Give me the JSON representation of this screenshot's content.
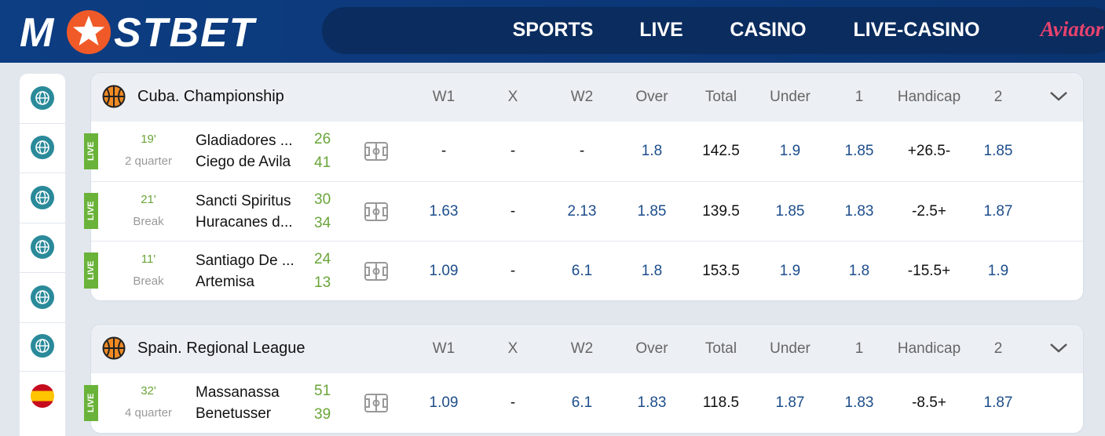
{
  "header": {
    "logo_left": "M",
    "logo_right": "STBET",
    "nav": [
      "SPORTS",
      "LIVE",
      "CASINO",
      "LIVE-CASINO"
    ],
    "aviator": "Aviator"
  },
  "live_badge": "LIVE",
  "leagues": [
    {
      "name": "Cuba. Championship",
      "columns": [
        "W1",
        "X",
        "W2",
        "Over",
        "Total",
        "Under",
        "1",
        "Handicap",
        "2"
      ],
      "matches": [
        {
          "minute": "19'",
          "status": "2 quarter",
          "team1": "Gladiadores ...",
          "team2": "Ciego de Avila",
          "score1": "26",
          "score2": "41",
          "odds": [
            "-",
            "-",
            "-",
            "1.8",
            "142.5",
            "1.9",
            "1.85",
            "+26.5-",
            "1.85"
          ]
        },
        {
          "minute": "21'",
          "status": "Break",
          "team1": "Sancti Spiritus",
          "team2": "Huracanes d...",
          "score1": "30",
          "score2": "34",
          "odds": [
            "1.63",
            "-",
            "2.13",
            "1.85",
            "139.5",
            "1.85",
            "1.83",
            "-2.5+",
            "1.87"
          ]
        },
        {
          "minute": "11'",
          "status": "Break",
          "team1": "Santiago De ...",
          "team2": "Artemisa",
          "score1": "24",
          "score2": "13",
          "odds": [
            "1.09",
            "-",
            "6.1",
            "1.8",
            "153.5",
            "1.9",
            "1.8",
            "-15.5+",
            "1.9"
          ]
        }
      ]
    },
    {
      "name": "Spain. Regional League",
      "columns": [
        "W1",
        "X",
        "W2",
        "Over",
        "Total",
        "Under",
        "1",
        "Handicap",
        "2"
      ],
      "matches": [
        {
          "minute": "32'",
          "status": "4 quarter",
          "team1": "Massanassa",
          "team2": "Benetusser",
          "score1": "51",
          "score2": "39",
          "odds": [
            "1.09",
            "-",
            "6.1",
            "1.83",
            "118.5",
            "1.87",
            "1.83",
            "-8.5+",
            "1.87"
          ]
        }
      ]
    }
  ]
}
